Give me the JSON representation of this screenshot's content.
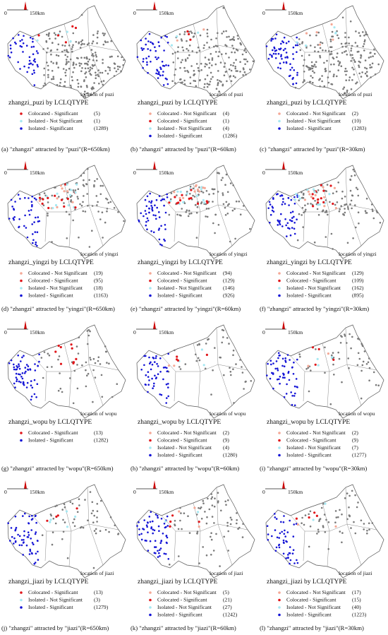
{
  "scale_bar": {
    "start": "0",
    "end": "150km"
  },
  "panels": [
    {
      "title": "zhangzi_puzi by LCLQTYPE",
      "location_label": "location of puzi",
      "caption": "(a) \"zhangzi\" attracted by \"puzi\"(R=650km)",
      "legend": [
        {
          "label": "Colocated - Significant",
          "count": "(5)",
          "color": "#e0161a"
        },
        {
          "label": "Isolated - Not Significant",
          "count": "(1)",
          "color": "#a6e8f2"
        },
        {
          "label": "Isolated - Significant",
          "count": "(1289)",
          "color": "#1414d6"
        }
      ]
    },
    {
      "title": "zhangzi_puzi by LCLQTYPE",
      "location_label": "location of puzi",
      "caption": "(b) \"zhangzi\" attracted by \"puzi\"(R=60km)",
      "legend": [
        {
          "label": "Colocated - Not Significant",
          "count": "(4)",
          "color": "#f4a896"
        },
        {
          "label": "Colocated - Significant",
          "count": "(1)",
          "color": "#e0161a"
        },
        {
          "label": "Isolated - Not Significant",
          "count": "(4)",
          "color": "#a6e8f2"
        },
        {
          "label": "Isolated - Significant",
          "count": "(1286)",
          "color": "#1414d6"
        }
      ]
    },
    {
      "title": "zhangzi_puzi by LCLQTYPE",
      "location_label": "location of puzi",
      "caption": "(c) \"zhangzi\" attracted by \"puzi\"(R=30km)",
      "legend": [
        {
          "label": "Colocated - Not Significant",
          "count": "(2)",
          "color": "#f4a896"
        },
        {
          "label": "Isolated - Not Significant",
          "count": "(10)",
          "color": "#a6e8f2"
        },
        {
          "label": "Isolated - Significant",
          "count": "(1283)",
          "color": "#1414d6"
        }
      ]
    },
    {
      "title": "zhangzi_yingzi by LCLQTYPE",
      "location_label": "location of yingzi",
      "caption": "(d) \"zhangzi\" attracted by \"yingzi\"(R=650km)",
      "legend": [
        {
          "label": "Colocated - Not Significant",
          "count": "(19)",
          "color": "#f4a896"
        },
        {
          "label": "Colocated - Significant",
          "count": "(95)",
          "color": "#e0161a"
        },
        {
          "label": "Isolated - Not Significant",
          "count": "(18)",
          "color": "#a6e8f2"
        },
        {
          "label": "Isolated - Significant",
          "count": "(1163)",
          "color": "#1414d6"
        }
      ]
    },
    {
      "title": "zhangzi_yingzi by LCLQTYPE",
      "location_label": "location of yingzi",
      "caption": "(e) \"zhangzi\" attracted by \"yingzi\"(R=60km)",
      "legend": [
        {
          "label": "Colocated - Not Significant",
          "count": "(94)",
          "color": "#f4a896"
        },
        {
          "label": "Colocated - Significant",
          "count": "(129)",
          "color": "#e0161a"
        },
        {
          "label": "Isolated - Not Significant",
          "count": "(146)",
          "color": "#a6e8f2"
        },
        {
          "label": "Isolated - Significant",
          "count": "(926)",
          "color": "#1414d6"
        }
      ]
    },
    {
      "title": "zhangzi_yingzi by LCLQTYPE",
      "location_label": "location of yingzi",
      "caption": "(f) \"zhangzi\" attracted by \"yingzi\"(R=30km)",
      "legend": [
        {
          "label": "Colocated - Not Significant",
          "count": "(129)",
          "color": "#f4a896"
        },
        {
          "label": "Colocated - Significant",
          "count": "(109)",
          "color": "#e0161a"
        },
        {
          "label": "Isolated - Not Significant",
          "count": "(162)",
          "color": "#a6e8f2"
        },
        {
          "label": "Isolated - Significant",
          "count": "(895)",
          "color": "#1414d6"
        }
      ]
    },
    {
      "title": "zhangzi_wopu by LCLQTYPE",
      "location_label": "location of wopu",
      "caption": "(g) \"zhangzi\" attracted by \"wopu\"(R=650km)",
      "legend": [
        {
          "label": "Colocated - Significant",
          "count": "(13)",
          "color": "#e0161a"
        },
        {
          "label": "Isolated - Significant",
          "count": "(1282)",
          "color": "#1414d6"
        }
      ]
    },
    {
      "title": "zhangzi_wopu by LCLQTYPE",
      "location_label": "location of wopu",
      "caption": "(h) \"zhangzi\" attracted by \"wopu\"(R=60km)",
      "legend": [
        {
          "label": "Colocated - Not Significant",
          "count": "(2)",
          "color": "#f4a896"
        },
        {
          "label": "Colocated - Significant",
          "count": "(9)",
          "color": "#e0161a"
        },
        {
          "label": "Isolated - Not Significant",
          "count": "(4)",
          "color": "#a6e8f2"
        },
        {
          "label": "Isolated - Significant",
          "count": "(1280)",
          "color": "#1414d6"
        }
      ]
    },
    {
      "title": "zhangzi_wopu by LCLQTYPE",
      "location_label": "location of wopu",
      "caption": "(i) \"zhangzi\" attracted by \"wopu\"(R=30km)",
      "legend": [
        {
          "label": "Colocated - Not Significant",
          "count": "(2)",
          "color": "#f4a896"
        },
        {
          "label": "Colocated - Significant",
          "count": "(9)",
          "color": "#e0161a"
        },
        {
          "label": "Isolated - Not Significant",
          "count": "(7)",
          "color": "#a6e8f2"
        },
        {
          "label": "Isolated - Significant",
          "count": "(1277)",
          "color": "#1414d6"
        }
      ]
    },
    {
      "title": "zhangzi_jiazi by LCLQTYPE",
      "location_label": "location of jiazi",
      "caption": "(j) \"zhangzi\" attracted by \"jiazi\"(R=650km)",
      "legend": [
        {
          "label": "Colocated - Significant",
          "count": "(13)",
          "color": "#e0161a"
        },
        {
          "label": "Isolated - Not Significant",
          "count": "(3)",
          "color": "#a6e8f2"
        },
        {
          "label": "Isolated - Significant",
          "count": "(1279)",
          "color": "#1414d6"
        }
      ]
    },
    {
      "title": "zhangzi_jiazi by LCLQTYPE",
      "location_label": "location of jiazi",
      "caption": "(k) \"zhangzi\" attracted by \"jiazi\"(R=60km)",
      "legend": [
        {
          "label": "Colocated - Not Significant",
          "count": "(5)",
          "color": "#f4a896"
        },
        {
          "label": "Colocated - Significant",
          "count": "(21)",
          "color": "#e0161a"
        },
        {
          "label": "Isolated - Not Significant",
          "count": "(27)",
          "color": "#a6e8f2"
        },
        {
          "label": "Isolated - Significant",
          "count": "(1242)",
          "color": "#1414d6"
        }
      ]
    },
    {
      "title": "zhangzi_jiazi by LCLQTYPE",
      "location_label": "location of jiazi",
      "caption": "(l) \"zhangzi\" attracted by \"jiazi\"(R=30km)",
      "legend": [
        {
          "label": "Colocated - Not Significant",
          "count": "(17)",
          "color": "#f4a896"
        },
        {
          "label": "Colocated - Significant",
          "count": "(15)",
          "color": "#e0161a"
        },
        {
          "label": "Isolated - Not Significant",
          "count": "(40)",
          "color": "#a6e8f2"
        },
        {
          "label": "Isolated - Significant",
          "count": "(1223)",
          "color": "#1414d6"
        }
      ]
    }
  ]
}
